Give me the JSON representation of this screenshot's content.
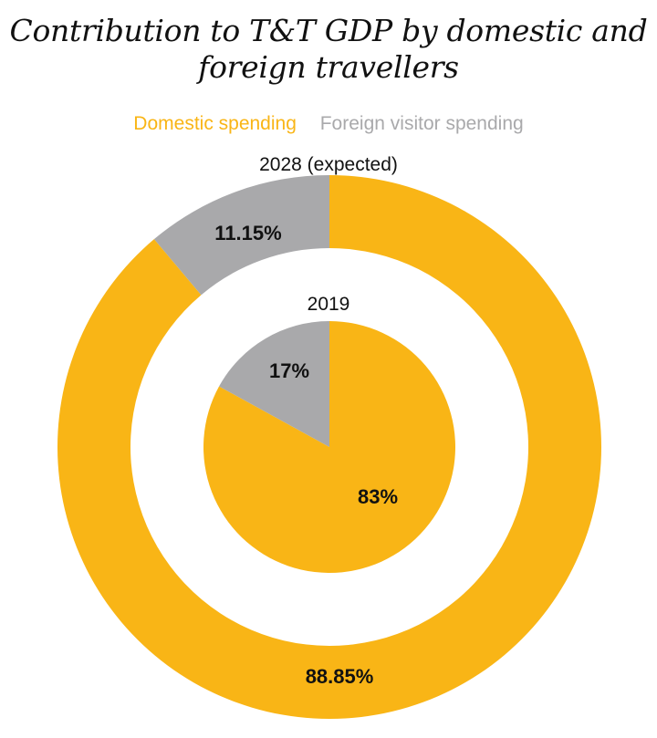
{
  "chart_data": {
    "type": "pie",
    "title": "Contribution to T&T GDP by domestic and foreign travellers",
    "title_lines": [
      "Contribution to T&T GDP by domestic and",
      "foreign travellers"
    ],
    "legend": [
      {
        "name": "Domestic spending",
        "color": "#f9b516"
      },
      {
        "name": "Foreign visitor spending",
        "color": "#a9a9ab"
      }
    ],
    "rings": [
      {
        "label": "2028 (expected)",
        "slices": [
          {
            "name": "Domestic spending",
            "value": 88.85,
            "label": "88.85%",
            "color": "#f9b516"
          },
          {
            "name": "Foreign visitor spending",
            "value": 11.15,
            "label": "11.15%",
            "color": "#a9a9ab"
          }
        ]
      },
      {
        "label": "2019",
        "slices": [
          {
            "name": "Domestic spending",
            "value": 83,
            "label": "83%",
            "color": "#f9b516"
          },
          {
            "name": "Foreign visitor spending",
            "value": 17,
            "label": "17%",
            "color": "#a9a9ab"
          }
        ]
      }
    ]
  }
}
